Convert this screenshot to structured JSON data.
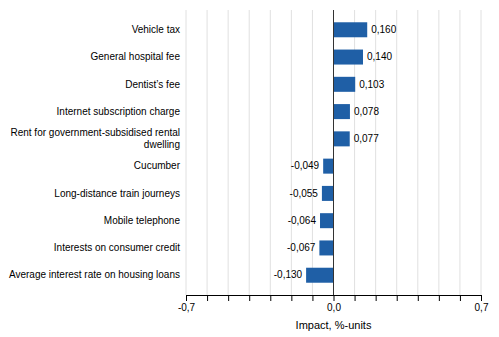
{
  "chart_data": {
    "type": "bar",
    "orientation": "horizontal",
    "categories": [
      "Average interest rate on housing loans",
      "Interests on consumer credit",
      "Mobile telephone",
      "Long-distance train journeys",
      "Cucumber",
      "Rent for government-subsidised rental\ndwelling",
      "Internet subscription charge",
      "Dentist’s fee",
      "General hospital fee",
      "Vehicle tax"
    ],
    "values": [
      -0.13,
      -0.067,
      -0.064,
      -0.055,
      -0.049,
      0.077,
      0.078,
      0.103,
      0.14,
      0.16
    ],
    "value_labels": [
      "-0,130",
      "-0,067",
      "-0,064",
      "-0,055",
      "-0,049",
      "0,077",
      "0,078",
      "0,103",
      "0,140",
      "0,160"
    ],
    "data_labels": true,
    "color": "#1f5fa6",
    "xlabel": "Impact, %-units",
    "xlim": [
      -0.7,
      0.7
    ],
    "xticks": [
      {
        "value": -0.7,
        "label": "-0,7"
      },
      {
        "value": -0.6,
        "label": null
      },
      {
        "value": -0.5,
        "label": null
      },
      {
        "value": -0.4,
        "label": null
      },
      {
        "value": -0.3,
        "label": null
      },
      {
        "value": -0.2,
        "label": null
      },
      {
        "value": -0.1,
        "label": null
      },
      {
        "value": 0.0,
        "label": "0,0"
      },
      {
        "value": 0.1,
        "label": null
      },
      {
        "value": 0.2,
        "label": null
      },
      {
        "value": 0.3,
        "label": null
      },
      {
        "value": 0.4,
        "label": null
      },
      {
        "value": 0.5,
        "label": null
      },
      {
        "value": 0.6,
        "label": null
      },
      {
        "value": 0.7,
        "label": "0,7"
      }
    ],
    "grid": true
  }
}
